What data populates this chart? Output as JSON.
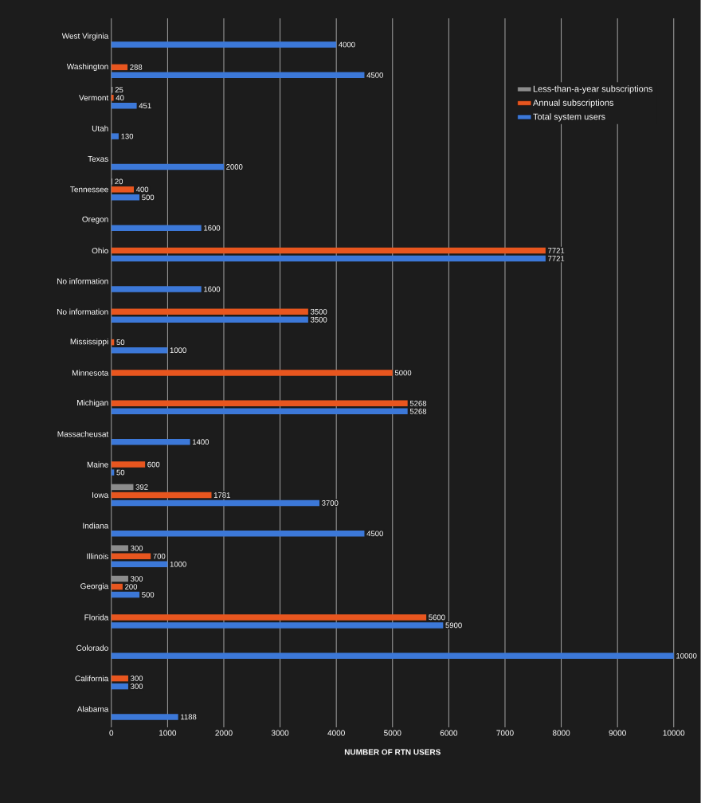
{
  "chart_data": {
    "type": "bar",
    "orientation": "horizontal",
    "xlabel": "NUMBER OF RTN USERS",
    "categories": [
      "West Virginia",
      "Washington",
      "Vermont",
      "Utah",
      "Texas",
      "Tennessee",
      "Oregon",
      "Ohio",
      "No information",
      "No information",
      "Mississippi",
      "Minnesota",
      "Michigan",
      "Massacheusat",
      "Maine",
      "Iowa",
      "Indiana",
      "Illinois",
      "Georgia",
      "Florida",
      "Colorado",
      "California",
      "Alabama"
    ],
    "series": [
      {
        "name": "Less-than-a-year subscriptions",
        "color": "#8c8c8c",
        "values": [
          null,
          null,
          25,
          null,
          null,
          20,
          null,
          null,
          null,
          null,
          null,
          null,
          null,
          null,
          null,
          392,
          null,
          300,
          300,
          null,
          null,
          null,
          null
        ]
      },
      {
        "name": "Annual subscriptions",
        "color": "#e8561f",
        "values": [
          null,
          288,
          40,
          null,
          null,
          400,
          null,
          7721,
          null,
          3500,
          50,
          5000,
          5268,
          null,
          600,
          1781,
          null,
          700,
          200,
          5600,
          null,
          300,
          null
        ]
      },
      {
        "name": "Total system users",
        "color": "#3c78d8",
        "values": [
          4000,
          4500,
          451,
          130,
          2000,
          500,
          1600,
          7721,
          1600,
          3500,
          1000,
          null,
          5268,
          1400,
          50,
          3700,
          4500,
          1000,
          500,
          5900,
          10000,
          300,
          1188
        ]
      }
    ],
    "xlim": [
      0,
      10000
    ],
    "xticks": [
      0,
      1000,
      2000,
      3000,
      4000,
      5000,
      6000,
      7000,
      8000,
      9000,
      10000
    ],
    "grid": "x",
    "legend": "top right",
    "data_labels": true
  }
}
